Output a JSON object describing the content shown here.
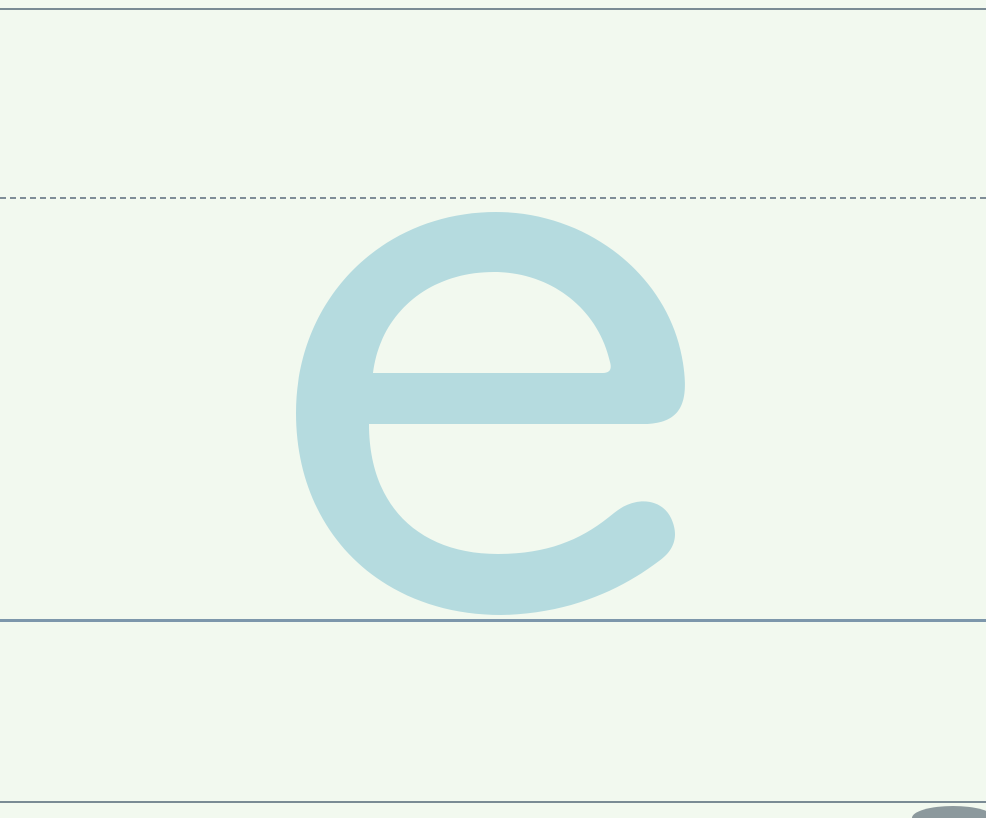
{
  "letter": {
    "character": "e",
    "color": "#b5dbdf"
  },
  "colors": {
    "background": "#f2f9ef",
    "guide": "#7a8b94",
    "baseline": "#7d97ab"
  }
}
